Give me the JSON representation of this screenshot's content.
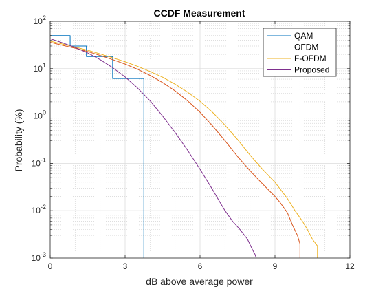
{
  "chart_data": {
    "type": "line",
    "title": "CCDF Measurement",
    "xlabel": "dB above average power",
    "ylabel": "Probability (%)",
    "xlim": [
      0,
      12
    ],
    "ylim": [
      0.001,
      100
    ],
    "yscale": "log",
    "x_ticks": [
      0,
      3,
      6,
      9,
      12
    ],
    "x_tick_labels": [
      "0",
      "3",
      "6",
      "9",
      "12"
    ],
    "y_ticks": [
      0.001,
      0.01,
      0.1,
      1,
      10,
      100
    ],
    "y_tick_labels": [
      {
        "base": "10",
        "exp": "-3"
      },
      {
        "base": "10",
        "exp": "-2"
      },
      {
        "base": "10",
        "exp": "-1"
      },
      {
        "base": "10",
        "exp": "0"
      },
      {
        "base": "10",
        "exp": "1"
      },
      {
        "base": "10",
        "exp": "2"
      }
    ],
    "grid": true,
    "minor_grid": true,
    "legend_position": "top-right",
    "series": [
      {
        "name": "QAM",
        "color": "#0072BD",
        "style": "step",
        "x": [
          0,
          0.8,
          0.8,
          1.45,
          1.45,
          2.5,
          2.5,
          3.75,
          3.75
        ],
        "y": [
          50,
          50,
          30,
          30,
          18,
          18,
          6.2,
          6.2,
          0.001
        ]
      },
      {
        "name": "OFDM",
        "color": "#D95319",
        "style": "line",
        "x": [
          0,
          0.5,
          1,
          1.5,
          2,
          2.5,
          3,
          3.5,
          4,
          4.5,
          5,
          5.5,
          6,
          6.5,
          7,
          7.5,
          8,
          8.5,
          9,
          9.2,
          9.5,
          9.7,
          9.9,
          10.0,
          10.0
        ],
        "y": [
          36,
          31,
          27,
          23,
          19,
          15.5,
          12.5,
          9.7,
          7.2,
          5.1,
          3.4,
          2.1,
          1.2,
          0.62,
          0.3,
          0.14,
          0.07,
          0.037,
          0.02,
          0.015,
          0.009,
          0.005,
          0.003,
          0.002,
          0.001
        ]
      },
      {
        "name": "F-OFDM",
        "color": "#EDB120",
        "style": "line",
        "x": [
          0,
          0.5,
          1,
          1.5,
          2,
          2.5,
          3,
          3.5,
          4,
          4.5,
          5,
          5.5,
          6,
          6.5,
          7,
          7.5,
          8,
          8.5,
          9,
          9.5,
          9.8,
          10.1,
          10.3,
          10.5,
          10.7,
          10.7
        ],
        "y": [
          38,
          33,
          28.5,
          24.5,
          20.5,
          17,
          14,
          11.2,
          8.7,
          6.6,
          4.7,
          3.2,
          2.05,
          1.2,
          0.64,
          0.32,
          0.15,
          0.075,
          0.04,
          0.018,
          0.01,
          0.006,
          0.004,
          0.0025,
          0.0018,
          0.001
        ]
      },
      {
        "name": "Proposed",
        "color": "#7E2F8E",
        "style": "line",
        "x": [
          0,
          0.5,
          1,
          1.5,
          2,
          2.5,
          3,
          3.5,
          4,
          4.5,
          5,
          5.5,
          6,
          6.5,
          6.8,
          7,
          7.3,
          7.6,
          7.9,
          8.1,
          8.2,
          8.25
        ],
        "y": [
          43,
          35,
          28,
          21.5,
          15.5,
          10.5,
          6.7,
          3.9,
          2.1,
          1.0,
          0.45,
          0.19,
          0.075,
          0.028,
          0.015,
          0.01,
          0.006,
          0.004,
          0.0025,
          0.0015,
          0.0012,
          0.001
        ]
      }
    ]
  }
}
